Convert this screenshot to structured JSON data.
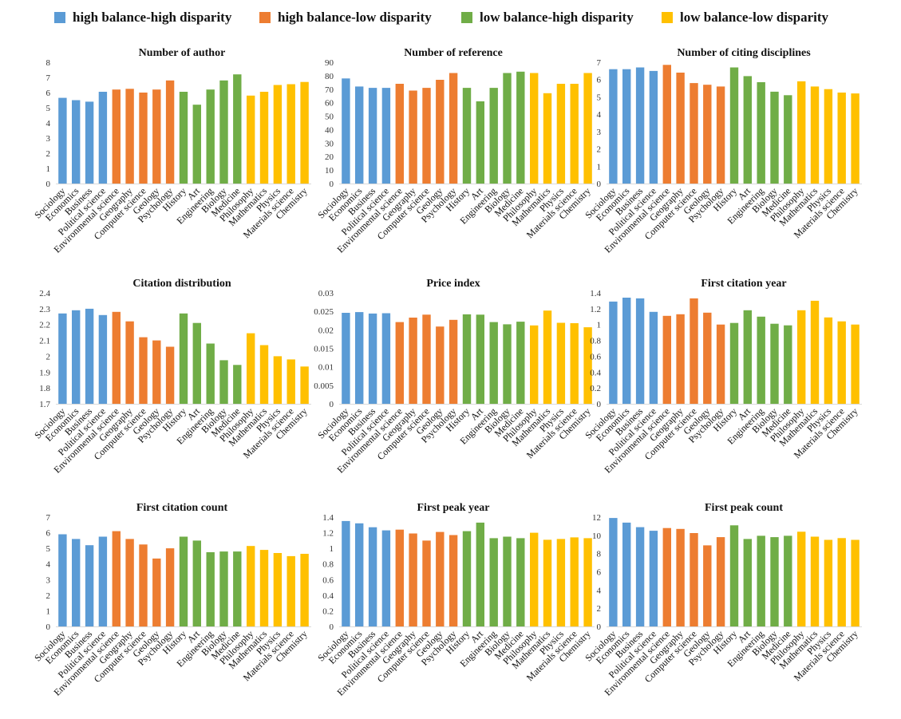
{
  "legend": [
    {
      "label": "high balance-high disparity",
      "color": "#5b9bd5"
    },
    {
      "label": "high balance-low disparity",
      "color": "#ed7d31"
    },
    {
      "label": "low balance-high disparity",
      "color": "#70ad47"
    },
    {
      "label": "low balance-low disparity",
      "color": "#ffc000"
    }
  ],
  "groups": [
    0,
    0,
    0,
    0,
    1,
    1,
    1,
    1,
    1,
    2,
    2,
    2,
    2,
    2,
    3,
    3,
    3,
    3,
    3
  ],
  "chart_data": [
    {
      "type": "bar",
      "title": "Number of author",
      "categories": [
        "Sociology",
        "Economics",
        "Business",
        "Political science",
        "Environmental science",
        "Geography",
        "Computer science",
        "Geology",
        "Psychology",
        "History",
        "Art",
        "Engineering",
        "Biology",
        "Medicine",
        "Philosophy",
        "Mathematics",
        "Physics",
        "Materials science",
        "Chemistry"
      ],
      "values": [
        5.65,
        5.5,
        5.4,
        6.05,
        6.2,
        6.25,
        6.0,
        6.2,
        6.8,
        6.05,
        5.2,
        6.2,
        6.8,
        7.2,
        5.8,
        6.05,
        6.5,
        6.55,
        6.7
      ],
      "ylim": [
        0,
        8
      ],
      "ticks": [
        "0",
        "1",
        "2",
        "3",
        "4",
        "5",
        "6",
        "7",
        "8"
      ]
    },
    {
      "type": "bar",
      "title": "Number of reference",
      "categories": [
        "Sociology",
        "Economics",
        "Business",
        "Political science",
        "Environmental science",
        "Geography",
        "Computer science",
        "Geology",
        "Psychology",
        "History",
        "Art",
        "Engineering",
        "Biology",
        "Medicine",
        "Philosophy",
        "Mathematics",
        "Physics",
        "Materials science",
        "Chemistry"
      ],
      "values": [
        78,
        72,
        71,
        71,
        74,
        69,
        71,
        77,
        82,
        71,
        61,
        71,
        82,
        83,
        82,
        67,
        74,
        74,
        82
      ],
      "ylim": [
        0,
        90
      ],
      "ticks": [
        "0",
        "10",
        "20",
        "30",
        "40",
        "50",
        "60",
        "70",
        "80",
        "90"
      ]
    },
    {
      "type": "bar",
      "title": "Number of citing disciplines",
      "categories": [
        "Sociology",
        "Economics",
        "Business",
        "Political science",
        "Environmental science",
        "Geography",
        "Computer science",
        "Geology",
        "Psychology",
        "History",
        "Art",
        "Engineering",
        "Biology",
        "Medicine",
        "Philosophy",
        "Mathematics",
        "Physics",
        "Materials science",
        "Chemistry"
      ],
      "values": [
        6.6,
        6.6,
        6.7,
        6.5,
        6.85,
        6.4,
        5.8,
        5.7,
        5.6,
        6.7,
        6.2,
        5.85,
        5.3,
        5.1,
        5.9,
        5.6,
        5.45,
        5.25,
        5.2
      ],
      "ylim": [
        0,
        7
      ],
      "ticks": [
        "0",
        "1",
        "2",
        "3",
        "4",
        "5",
        "6",
        "7"
      ]
    },
    {
      "type": "bar",
      "title": "Citation distribution",
      "categories": [
        "Sociology",
        "Economics",
        "Business",
        "Political science",
        "Environmental science",
        "Geography",
        "Computer science",
        "Geology",
        "Psychology",
        "History",
        "Art",
        "Engineering",
        "Biology",
        "Medicine",
        "Philosophy",
        "Mathematics",
        "Physics",
        "Materials science",
        "Chemistry"
      ],
      "values": [
        2.27,
        2.29,
        2.3,
        2.26,
        2.28,
        2.22,
        2.12,
        2.1,
        2.06,
        2.27,
        2.21,
        2.08,
        1.975,
        1.945,
        2.145,
        2.07,
        2.0,
        1.98,
        1.935
      ],
      "ylim": [
        1.7,
        2.4
      ],
      "ticks": [
        "1.7",
        "1.8",
        "1.9",
        "2",
        "2.1",
        "2.2",
        "2.3",
        "2.4"
      ]
    },
    {
      "type": "bar",
      "title": "Price index",
      "categories": [
        "Sociology",
        "Economics",
        "Business",
        "Political science",
        "Environmental science",
        "Geography",
        "Computer science",
        "Geology",
        "Psychology",
        "History",
        "Art",
        "Engineering",
        "Biology",
        "Medicine",
        "Philosophy",
        "Mathematics",
        "Physics",
        "Materials science",
        "Chemistry"
      ],
      "values": [
        0.0246,
        0.0248,
        0.0244,
        0.0245,
        0.0221,
        0.0233,
        0.0241,
        0.0209,
        0.0227,
        0.0242,
        0.0241,
        0.0221,
        0.0215,
        0.0222,
        0.0212,
        0.0252,
        0.0219,
        0.0218,
        0.0207
      ],
      "ylim": [
        0,
        0.03
      ],
      "ticks": [
        "0",
        "0.005",
        "0.01",
        "0.015",
        "0.02",
        "0.025",
        "0.03"
      ]
    },
    {
      "type": "bar",
      "title": "First citation year",
      "categories": [
        "Sociology",
        "Economics",
        "Business",
        "Political science",
        "Environmental science",
        "Geography",
        "Computer science",
        "Geology",
        "Psychology",
        "History",
        "Art",
        "Engineering",
        "Biology",
        "Medicine",
        "Philosophy",
        "Mathematics",
        "Physics",
        "Materials science",
        "Chemistry"
      ],
      "values": [
        1.29,
        1.34,
        1.33,
        1.16,
        1.11,
        1.13,
        1.33,
        1.15,
        1.0,
        1.02,
        1.18,
        1.1,
        1.01,
        0.99,
        1.18,
        1.3,
        1.09,
        1.04,
        1.0
      ],
      "ylim": [
        0,
        1.4
      ],
      "ticks": [
        "0",
        "0.2",
        "0.4",
        "0.6",
        "0.8",
        "1",
        "1.2",
        "1.4"
      ]
    },
    {
      "type": "bar",
      "title": "First citation count",
      "categories": [
        "Sociology",
        "Economics",
        "Business",
        "Political science",
        "Environmental science",
        "Geography",
        "Computer science",
        "Geology",
        "Psychology",
        "History",
        "Art",
        "Engineering",
        "Biology",
        "Medicine",
        "Philosophy",
        "Mathematics",
        "Physics",
        "Materials science",
        "Chemistry"
      ],
      "values": [
        5.9,
        5.6,
        5.2,
        5.75,
        6.1,
        5.6,
        5.25,
        4.35,
        5.0,
        5.75,
        5.5,
        4.75,
        4.8,
        4.8,
        5.15,
        4.9,
        4.7,
        4.5,
        4.65
      ],
      "ylim": [
        0,
        7
      ],
      "ticks": [
        "0",
        "1",
        "2",
        "3",
        "4",
        "5",
        "6",
        "7"
      ]
    },
    {
      "type": "bar",
      "title": "First peak year",
      "categories": [
        "Sociology",
        "Economics",
        "Business",
        "Political science",
        "Environmental science",
        "Geography",
        "Computer science",
        "Geology",
        "Psychology",
        "History",
        "Art",
        "Engineering",
        "Biology",
        "Medicine",
        "Philosophy",
        "Mathematics",
        "Physics",
        "Materials science",
        "Chemistry"
      ],
      "values": [
        1.35,
        1.32,
        1.27,
        1.23,
        1.24,
        1.19,
        1.1,
        1.21,
        1.17,
        1.22,
        1.33,
        1.13,
        1.15,
        1.13,
        1.2,
        1.11,
        1.12,
        1.14,
        1.13
      ],
      "ylim": [
        0,
        1.4
      ],
      "ticks": [
        "0",
        "0.2",
        "0.4",
        "0.6",
        "0.8",
        "1",
        "1.2",
        "1.4"
      ]
    },
    {
      "type": "bar",
      "title": "First peak count",
      "categories": [
        "Sociology",
        "Economics",
        "Business",
        "Political science",
        "Environmental science",
        "Geography",
        "Computer science",
        "Geology",
        "Psychology",
        "History",
        "Art",
        "Engineering",
        "Biology",
        "Medicine",
        "Philosophy",
        "Mathematics",
        "Physics",
        "Materials science",
        "Chemistry"
      ],
      "values": [
        11.9,
        11.4,
        10.9,
        10.5,
        10.8,
        10.7,
        10.25,
        8.9,
        9.8,
        11.1,
        9.6,
        9.95,
        9.8,
        9.95,
        10.4,
        9.85,
        9.5,
        9.7,
        9.5
      ],
      "ylim": [
        0,
        12
      ],
      "ticks": [
        "0",
        "2",
        "4",
        "6",
        "8",
        "10",
        "12"
      ]
    }
  ]
}
